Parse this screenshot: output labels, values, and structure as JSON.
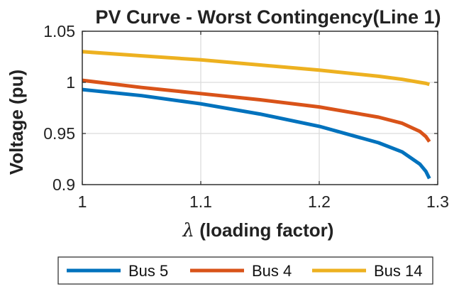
{
  "chart_data": {
    "type": "line",
    "title": "PV Curve - Worst Contingency(Line 1)",
    "xlabel_symbol": "λ",
    "xlabel_text": " (loading factor)",
    "ylabel": "Voltage (pu)",
    "xlim": [
      1,
      1.3
    ],
    "ylim": [
      0.9,
      1.05
    ],
    "xticks": [
      1,
      1.1,
      1.2,
      1.3
    ],
    "xtick_labels": [
      "1",
      "1.1",
      "1.2",
      "1.3"
    ],
    "yticks": [
      0.9,
      0.95,
      1,
      1.05
    ],
    "ytick_labels": [
      "0.9",
      "0.95",
      "1",
      "1.05"
    ],
    "grid": true,
    "legend_position": "bottom-outside",
    "series": [
      {
        "name": "Bus 5",
        "color": "#0072BD",
        "x": [
          1.0,
          1.05,
          1.1,
          1.15,
          1.2,
          1.25,
          1.27,
          1.285,
          1.29,
          1.293
        ],
        "y": [
          0.993,
          0.987,
          0.979,
          0.969,
          0.957,
          0.941,
          0.932,
          0.92,
          0.913,
          0.906
        ]
      },
      {
        "name": "Bus 4",
        "color": "#D95319",
        "x": [
          1.0,
          1.05,
          1.1,
          1.15,
          1.2,
          1.25,
          1.27,
          1.285,
          1.29,
          1.293
        ],
        "y": [
          1.002,
          0.995,
          0.989,
          0.983,
          0.976,
          0.966,
          0.96,
          0.952,
          0.947,
          0.942
        ]
      },
      {
        "name": "Bus 14",
        "color": "#EDB120",
        "x": [
          1.0,
          1.05,
          1.1,
          1.15,
          1.2,
          1.25,
          1.27,
          1.285,
          1.29,
          1.293
        ],
        "y": [
          1.03,
          1.026,
          1.022,
          1.017,
          1.012,
          1.006,
          1.003,
          1.0,
          0.999,
          0.998
        ]
      }
    ]
  }
}
